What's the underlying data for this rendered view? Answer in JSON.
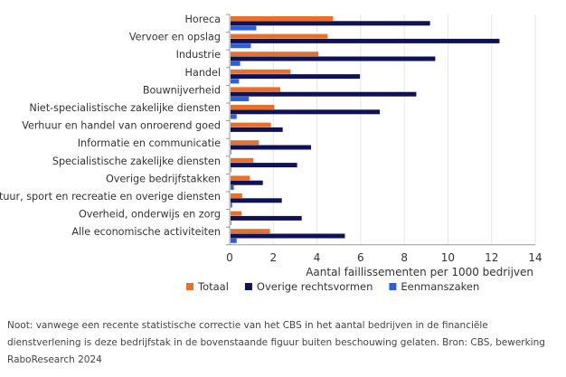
{
  "chart_data": {
    "type": "bar",
    "orientation": "horizontal",
    "categories": [
      "Horeca",
      "Vervoer en opslag",
      "Industrie",
      "Handel",
      "Bouwnijverheid",
      "Niet-specialistische zakelijke diensten",
      "Verhuur en handel van onroerend goed",
      "Informatie en communicatie",
      "Specialistische zakelijke diensten",
      "Overige bedrijfstakken",
      "Cultuur, sport en recreatie en overige diensten",
      "Overheid, onderwijs en zorg",
      "Alle economische activiteiten"
    ],
    "series": [
      {
        "name": "Totaal",
        "color": "#e8702a",
        "values": [
          4.74,
          4.49,
          4.07,
          2.79,
          2.32,
          2.04,
          1.89,
          1.34,
          1.09,
          0.93,
          0.57,
          0.54,
          1.85
        ]
      },
      {
        "name": "Overige rechtsvormen",
        "color": "#0f1257",
        "values": [
          9.18,
          12.36,
          9.42,
          5.97,
          8.55,
          6.88,
          2.43,
          3.73,
          3.09,
          1.52,
          2.39,
          3.3,
          5.28
        ]
      },
      {
        "name": "Eenmanszaken",
        "color": "#2b5fe0",
        "values": [
          1.22,
          0.97,
          0.48,
          0.43,
          0.88,
          0.32,
          0.03,
          0.07,
          0.07,
          0.19,
          0.11,
          0.07,
          0.32
        ]
      }
    ],
    "xlabel": "Aantal faillissementen per 1000 bedrijven",
    "xlim": [
      0,
      14
    ],
    "xticks": [
      0,
      2,
      4,
      6,
      8,
      10,
      12,
      14
    ],
    "grid": true,
    "legend_placement": "bottom"
  },
  "note": "Noot: vanwege een recente statistische correctie van het CBS in het aantal bedrijven in de financiële dienstverlening is deze bedrijfstak in de bovenstaande figuur buiten beschouwing gelaten. Bron: CBS, bewerking RaboResearch 2024"
}
